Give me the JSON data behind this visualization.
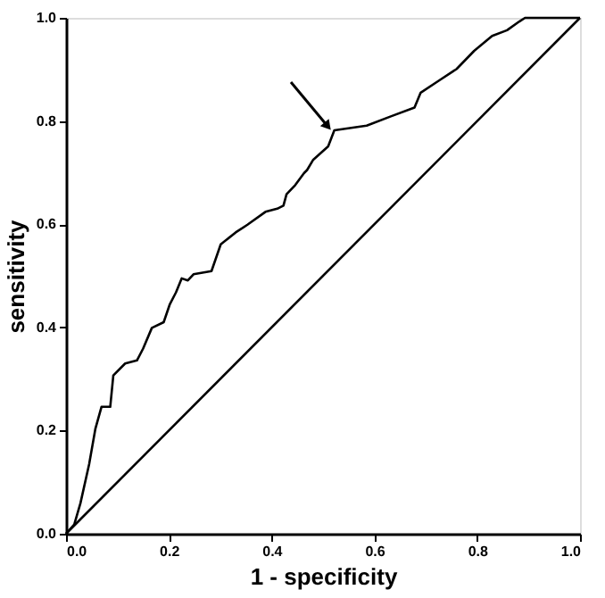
{
  "chart_data": {
    "type": "line",
    "xlabel": "1 - specificity",
    "ylabel": "sensitivity",
    "xlim": [
      0,
      1
    ],
    "ylim": [
      0,
      1
    ],
    "xticks": [
      {
        "value": 0,
        "label": "0.0"
      },
      {
        "value": 0.2,
        "label": "0.2"
      },
      {
        "value": 0.4,
        "label": "0.4"
      },
      {
        "value": 0.6,
        "label": "0.6"
      },
      {
        "value": 0.8,
        "label": "0.8"
      },
      {
        "value": 1,
        "label": "1.0"
      }
    ],
    "yticks": [
      {
        "value": 0,
        "label": "0.0"
      },
      {
        "value": 0.2,
        "label": "0.2"
      },
      {
        "value": 0.4,
        "label": "0.4"
      },
      {
        "value": 0.6,
        "label": "0.6"
      },
      {
        "value": 0.8,
        "label": "0.8"
      },
      {
        "value": 1,
        "label": "1.0"
      }
    ],
    "grid": false,
    "marker": "none",
    "line_style": "solid",
    "series": [
      {
        "color": "#000000",
        "x": [
          0,
          0.016,
          0.028,
          0.045,
          0.057,
          0.069,
          0.086,
          0.092,
          0.115,
          0.138,
          0.15,
          0.167,
          0.19,
          0.202,
          0.214,
          0.225,
          0.237,
          0.248,
          0.283,
          0.301,
          0.33,
          0.353,
          0.388,
          0.411,
          0.423,
          0.429,
          0.446,
          0.463,
          0.469,
          0.481,
          0.51,
          0.522,
          0.585,
          0.632,
          0.678,
          0.69,
          0.725,
          0.76,
          0.794,
          0.829,
          0.858,
          0.882,
          0.893,
          1.0
        ],
        "values": [
          0,
          0.018,
          0.059,
          0.135,
          0.203,
          0.246,
          0.246,
          0.307,
          0.33,
          0.336,
          0.359,
          0.399,
          0.41,
          0.445,
          0.468,
          0.495,
          0.491,
          0.503,
          0.509,
          0.561,
          0.584,
          0.599,
          0.624,
          0.63,
          0.636,
          0.658,
          0.676,
          0.699,
          0.705,
          0.725,
          0.751,
          0.782,
          0.791,
          0.809,
          0.826,
          0.855,
          0.878,
          0.901,
          0.936,
          0.965,
          0.976,
          0.993,
          1.0,
          1.0
        ]
      },
      {
        "color": "#000000",
        "x": [
          0,
          1
        ],
        "values": [
          0,
          1
        ]
      }
    ]
  }
}
